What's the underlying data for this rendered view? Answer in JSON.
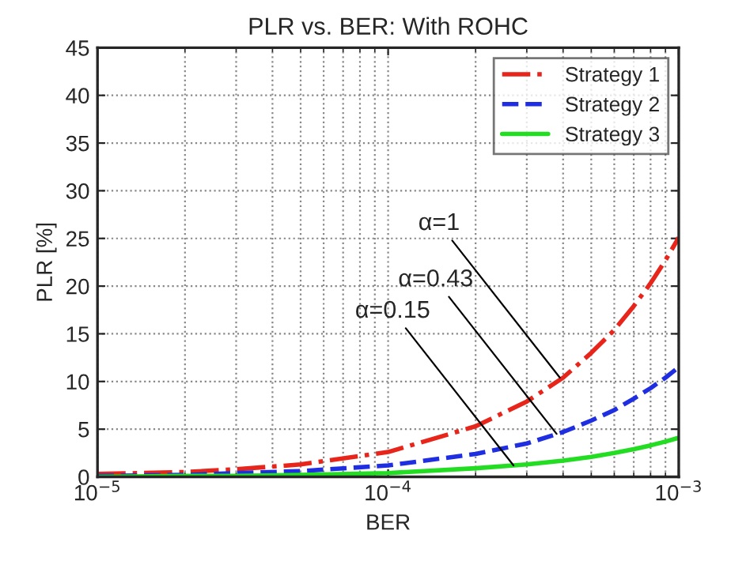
{
  "chart_data": {
    "type": "line",
    "title": "PLR vs. BER: With ROHC",
    "xlabel": "BER",
    "ylabel": "PLR [%]",
    "x": [
      1e-05,
      2e-05,
      3e-05,
      5e-05,
      0.0001,
      0.0002,
      0.0003,
      0.0004,
      0.0005,
      0.0006,
      0.0007,
      0.0008,
      0.0009,
      0.001
    ],
    "series": [
      {
        "name": "Strategy 1",
        "color": "#e8251b",
        "line_style": "dashdot",
        "values": [
          0.3,
          0.5,
          0.8,
          1.3,
          2.6,
          5.3,
          7.9,
          10.4,
          13,
          15.4,
          17.9,
          20.3,
          22.7,
          25.1
        ]
      },
      {
        "name": "Strategy 2",
        "color": "#1f2ee0",
        "line_style": "dashed",
        "values": [
          0.1,
          0.2,
          0.4,
          0.6,
          1.2,
          2.4,
          3.5,
          4.7,
          5.9,
          7.0,
          8.2,
          9.3,
          10.4,
          11.5
        ]
      },
      {
        "name": "Strategy 3",
        "color": "#22dd22",
        "line_style": "solid",
        "values": [
          0.0,
          0.1,
          0.1,
          0.2,
          0.4,
          0.9,
          1.3,
          1.7,
          2.1,
          2.5,
          2.9,
          3.3,
          3.7,
          4.1
        ]
      }
    ],
    "annotations": [
      {
        "text": "α=1",
        "x": 0.00039,
        "y": 10.4
      },
      {
        "text": "α=0.43",
        "x": 0.00038,
        "y": 4.5
      },
      {
        "text": "α=0.15",
        "x": 0.00027,
        "y": 1.2
      }
    ],
    "log": "x",
    "xlim": [
      1e-05,
      0.001
    ],
    "ylim": [
      0,
      45
    ],
    "xticks": [
      {
        "value": 1e-05,
        "label": "10$^{−5}$"
      },
      {
        "value": 0.0001,
        "label": "10$^{−4}$"
      },
      {
        "value": 0.001,
        "label": "10$^{−3}$"
      }
    ],
    "yticks": [
      0,
      5,
      10,
      15,
      20,
      25,
      30,
      35,
      40,
      45
    ],
    "grid": true,
    "legend": "top right",
    "marker": "none"
  }
}
